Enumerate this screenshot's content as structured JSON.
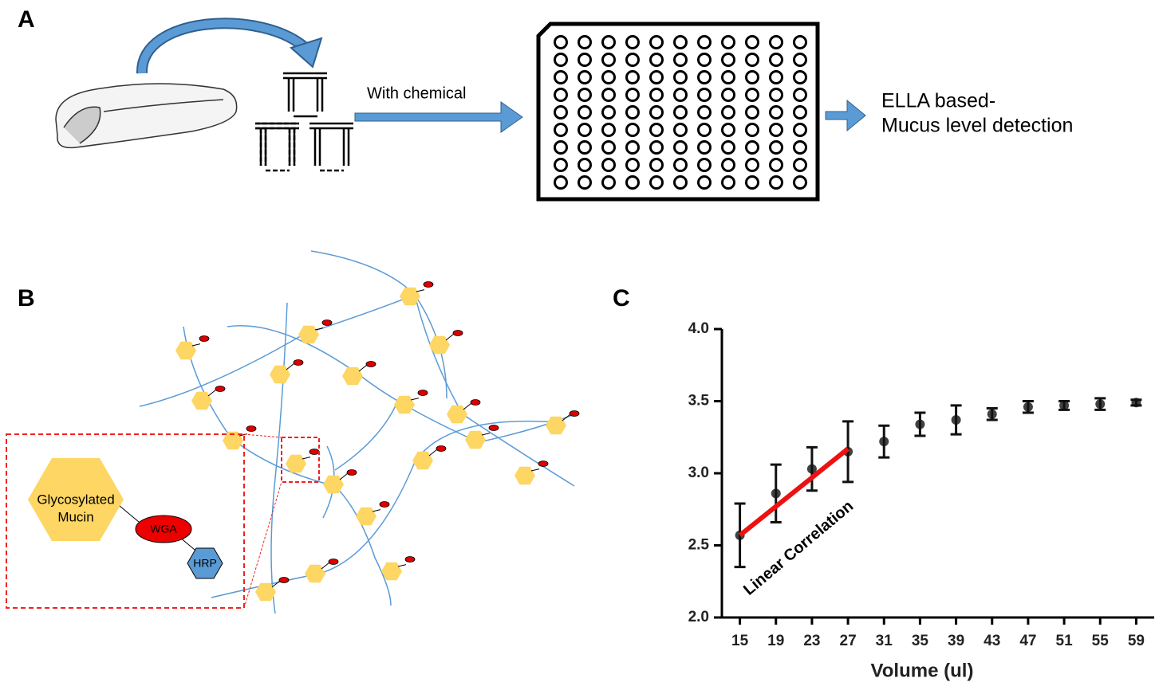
{
  "panel_a": {
    "label": "A",
    "step_label": "With chemical",
    "result_line1": "ELLA based-",
    "result_line2": "Mucus level detection"
  },
  "panel_b": {
    "label": "B",
    "mucin_line1": "Glycosylated",
    "mucin_line2": "Mucin",
    "lectin": "WGA",
    "enzyme": "HRP"
  },
  "panel_c": {
    "label": "C"
  },
  "chart_data": {
    "type": "errorbar",
    "x_label": "Volume (ul)",
    "x": [
      15,
      19,
      23,
      27,
      31,
      35,
      39,
      43,
      47,
      51,
      55,
      59
    ],
    "values": [
      2.57,
      2.86,
      3.03,
      3.15,
      3.22,
      3.34,
      3.37,
      3.41,
      3.46,
      3.47,
      3.48,
      3.49
    ],
    "errors": [
      0.22,
      0.2,
      0.15,
      0.21,
      0.11,
      0.08,
      0.1,
      0.04,
      0.04,
      0.03,
      0.04,
      0.02
    ],
    "color": "#111111",
    "xlim": [
      13,
      61
    ],
    "xticks": [
      15,
      19,
      23,
      27,
      31,
      35,
      39,
      43,
      47,
      51,
      55,
      59
    ],
    "ylim": [
      2,
      4
    ],
    "yticks": [
      {
        "value": 2,
        "label": "2.0"
      },
      2.5,
      {
        "value": 3,
        "label": "3.0"
      },
      3.5,
      {
        "value": 4,
        "label": "4.0"
      }
    ],
    "fit_line": {
      "label": "Linear Correlation",
      "x": [
        15,
        27
      ],
      "y": [
        2.57,
        3.17
      ],
      "color": "#ee1111"
    }
  }
}
